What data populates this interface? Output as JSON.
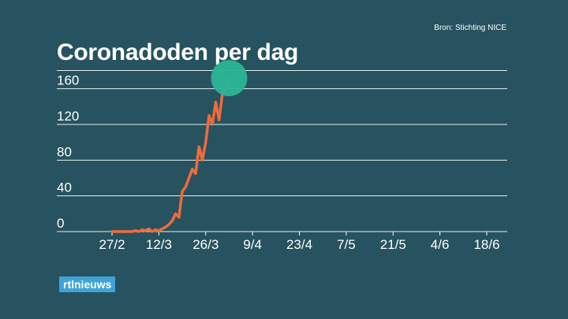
{
  "source": "Bron: Stichting NICE",
  "title": "Coronadoden per dag",
  "logo_text": "rtlnieuws",
  "colors": {
    "background": "#26535f",
    "line": "#f06b3a",
    "highlight": "#2bb596",
    "gridline": "#ffffff",
    "logo": "#3fa3d6"
  },
  "chart_data": {
    "type": "line",
    "title": "Coronadoden per dag",
    "xlabel": "",
    "ylabel": "",
    "x_tick_labels": [
      "27/2",
      "12/3",
      "26/3",
      "9/4",
      "23/4",
      "7/5",
      "21/5",
      "4/6",
      "18/6"
    ],
    "y_ticks": [
      0,
      40,
      80,
      120,
      160
    ],
    "ylim": [
      0,
      180
    ],
    "x_domain": [
      "2020-02-27",
      "2020-06-18"
    ],
    "grid": true,
    "highlight_last_point": true,
    "series": [
      {
        "x": [
          "2020-02-27",
          "2020-02-28",
          "2020-02-29",
          "2020-03-01",
          "2020-03-02",
          "2020-03-03",
          "2020-03-04",
          "2020-03-05",
          "2020-03-06",
          "2020-03-07",
          "2020-03-08",
          "2020-03-09",
          "2020-03-10",
          "2020-03-11",
          "2020-03-12",
          "2020-03-13",
          "2020-03-14",
          "2020-03-15",
          "2020-03-16",
          "2020-03-17",
          "2020-03-18",
          "2020-03-19",
          "2020-03-20",
          "2020-03-21",
          "2020-03-22",
          "2020-03-23",
          "2020-03-24",
          "2020-03-25",
          "2020-03-26",
          "2020-03-27",
          "2020-03-28",
          "2020-03-29",
          "2020-03-30",
          "2020-03-31",
          "2020-04-01",
          "2020-04-02"
        ],
        "y": [
          0,
          0,
          0,
          0,
          0,
          0,
          0,
          1,
          0,
          2,
          1,
          3,
          0,
          2,
          1,
          3,
          5,
          8,
          12,
          20,
          16,
          45,
          50,
          60,
          70,
          65,
          95,
          80,
          100,
          130,
          120,
          145,
          125,
          155,
          160,
          172
        ]
      }
    ]
  }
}
